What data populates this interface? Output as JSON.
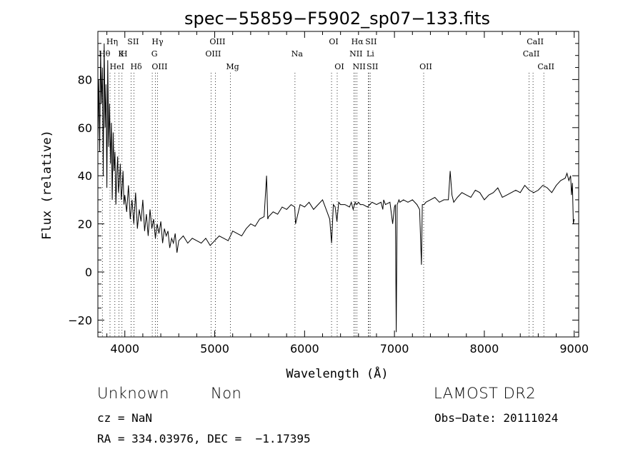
{
  "chart_data": {
    "type": "line",
    "title": "spec−55859−F5902_sp07−133.fits",
    "xlabel": "Wavelength (Å)",
    "ylabel": "Flux (relative)",
    "xlim": [
      3700,
      9050
    ],
    "ylim": [
      -27,
      100
    ],
    "x_ticks": [
      4000,
      5000,
      6000,
      7000,
      8000,
      9000
    ],
    "y_ticks": [
      -20,
      0,
      20,
      40,
      60,
      80
    ],
    "grid": false,
    "legend": "none",
    "line_color": "#000000",
    "series": [
      {
        "x": [
          3700,
          3710,
          3720,
          3730,
          3740,
          3750,
          3760,
          3770,
          3780,
          3790,
          3800,
          3810,
          3820,
          3830,
          3840,
          3850,
          3860,
          3870,
          3880,
          3890,
          3900,
          3910,
          3920,
          3930,
          3940,
          3950,
          3960,
          3970,
          3980,
          3990,
          4000,
          4020,
          4040,
          4060,
          4080,
          4100,
          4120,
          4140,
          4160,
          4180,
          4200,
          4220,
          4240,
          4260,
          4280,
          4300,
          4320,
          4340,
          4360,
          4380,
          4400,
          4420,
          4440,
          4460,
          4480,
          4500,
          4520,
          4540,
          4560,
          4580,
          4600,
          4650,
          4700,
          4750,
          4800,
          4850,
          4900,
          4950,
          5000,
          5050,
          5100,
          5150,
          5200,
          5250,
          5300,
          5350,
          5400,
          5450,
          5500,
          5550,
          5577,
          5590,
          5600,
          5650,
          5700,
          5750,
          5800,
          5850,
          5890,
          5900,
          5950,
          6000,
          6050,
          6100,
          6150,
          6200,
          6250,
          6280,
          6300,
          6320,
          6340,
          6360,
          6380,
          6400,
          6450,
          6500,
          6520,
          6540,
          6563,
          6580,
          6600,
          6620,
          6650,
          6700,
          6750,
          6800,
          6850,
          6870,
          6880,
          6900,
          6950,
          6980,
          7000,
          7010,
          7020,
          7030,
          7040,
          7050,
          7060,
          7100,
          7150,
          7200,
          7250,
          7280,
          7300,
          7310,
          7330,
          7350,
          7400,
          7450,
          7500,
          7550,
          7600,
          7620,
          7640,
          7660,
          7700,
          7750,
          7800,
          7850,
          7900,
          7950,
          8000,
          8050,
          8100,
          8150,
          8200,
          8250,
          8300,
          8350,
          8400,
          8450,
          8500,
          8550,
          8600,
          8650,
          8700,
          8750,
          8800,
          8850,
          8900,
          8920,
          8940,
          8960,
          8970,
          8980,
          8990,
          9000
        ],
        "y": [
          55,
          80,
          50,
          92,
          70,
          85,
          40,
          95,
          60,
          78,
          35,
          88,
          52,
          70,
          45,
          62,
          30,
          58,
          42,
          50,
          28,
          40,
          48,
          33,
          38,
          45,
          30,
          35,
          42,
          28,
          32,
          25,
          36,
          22,
          30,
          20,
          33,
          18,
          26,
          21,
          30,
          17,
          24,
          15,
          26,
          18,
          22,
          14,
          20,
          16,
          21,
          12,
          18,
          15,
          17,
          10,
          14,
          12,
          16,
          8,
          13,
          15,
          12,
          14,
          13,
          12,
          14,
          11,
          13,
          15,
          14,
          13,
          17,
          16,
          15,
          18,
          20,
          19,
          22,
          23,
          40,
          22,
          23,
          25,
          24,
          27,
          26,
          28,
          27,
          20,
          28,
          27,
          29,
          26,
          28,
          30,
          25,
          22,
          12,
          28,
          27,
          21,
          29,
          28,
          28,
          27,
          29,
          26,
          29,
          28,
          29,
          28,
          28,
          27,
          29,
          28,
          29,
          26,
          30,
          28,
          29,
          20,
          27,
          28,
          -25,
          28,
          29,
          30,
          29,
          30,
          29,
          30,
          28,
          26,
          3,
          28,
          28,
          29,
          30,
          31,
          29,
          30,
          30,
          42,
          32,
          29,
          31,
          33,
          32,
          31,
          34,
          33,
          30,
          32,
          33,
          35,
          31,
          32,
          33,
          34,
          33,
          36,
          34,
          33,
          34,
          36,
          35,
          33,
          36,
          38,
          39,
          41,
          38,
          40,
          32,
          37,
          20,
          22
        ]
      }
    ],
    "line_markers": [
      {
        "name": "Hη",
        "x": 3835,
        "row": 0
      },
      {
        "name": "Hθ",
        "x": 3750,
        "row": 1
      },
      {
        "name": "K",
        "x": 3934,
        "row": 1
      },
      {
        "name": "H",
        "x": 3968,
        "row": 1
      },
      {
        "name": "HeI",
        "x": 3889,
        "row": 2
      },
      {
        "name": "SII",
        "x": 4069,
        "row": 0
      },
      {
        "name": "Hδ",
        "x": 4102,
        "row": 2
      },
      {
        "name": "Hγ",
        "x": 4340,
        "row": 0
      },
      {
        "name": "G",
        "x": 4305,
        "row": 1
      },
      {
        "name": "OIII",
        "x": 4363,
        "row": 2
      },
      {
        "name": "OIII",
        "x": 4959,
        "row": 1
      },
      {
        "name": "OIII",
        "x": 5007,
        "row": 0
      },
      {
        "name": "Mg",
        "x": 5175,
        "row": 2
      },
      {
        "name": "Na",
        "x": 5893,
        "row": 1
      },
      {
        "name": "OI",
        "x": 6300,
        "row": 0
      },
      {
        "name": "OI",
        "x": 6363,
        "row": 2
      },
      {
        "name": "Hα",
        "x": 6563,
        "row": 0
      },
      {
        "name": "SII",
        "x": 6716,
        "row": 0
      },
      {
        "name": "NII",
        "x": 6548,
        "row": 1
      },
      {
        "name": "Li",
        "x": 6708,
        "row": 1
      },
      {
        "name": "NII",
        "x": 6583,
        "row": 2
      },
      {
        "name": "SII",
        "x": 6731,
        "row": 2
      },
      {
        "name": "OII",
        "x": 7325,
        "row": 2
      },
      {
        "name": "CaII",
        "x": 8542,
        "row": 0
      },
      {
        "name": "CaII",
        "x": 8498,
        "row": 1
      },
      {
        "name": "CaII",
        "x": 8662,
        "row": 2
      }
    ]
  },
  "info": {
    "class": "Unknown",
    "subclass": "Non",
    "survey": "LAMOST DR2",
    "cz": "cz = NaN",
    "obs_date": "Obs−Date: 20111024",
    "radec": "RA = 334.03976, DEC =  −1.17395"
  }
}
